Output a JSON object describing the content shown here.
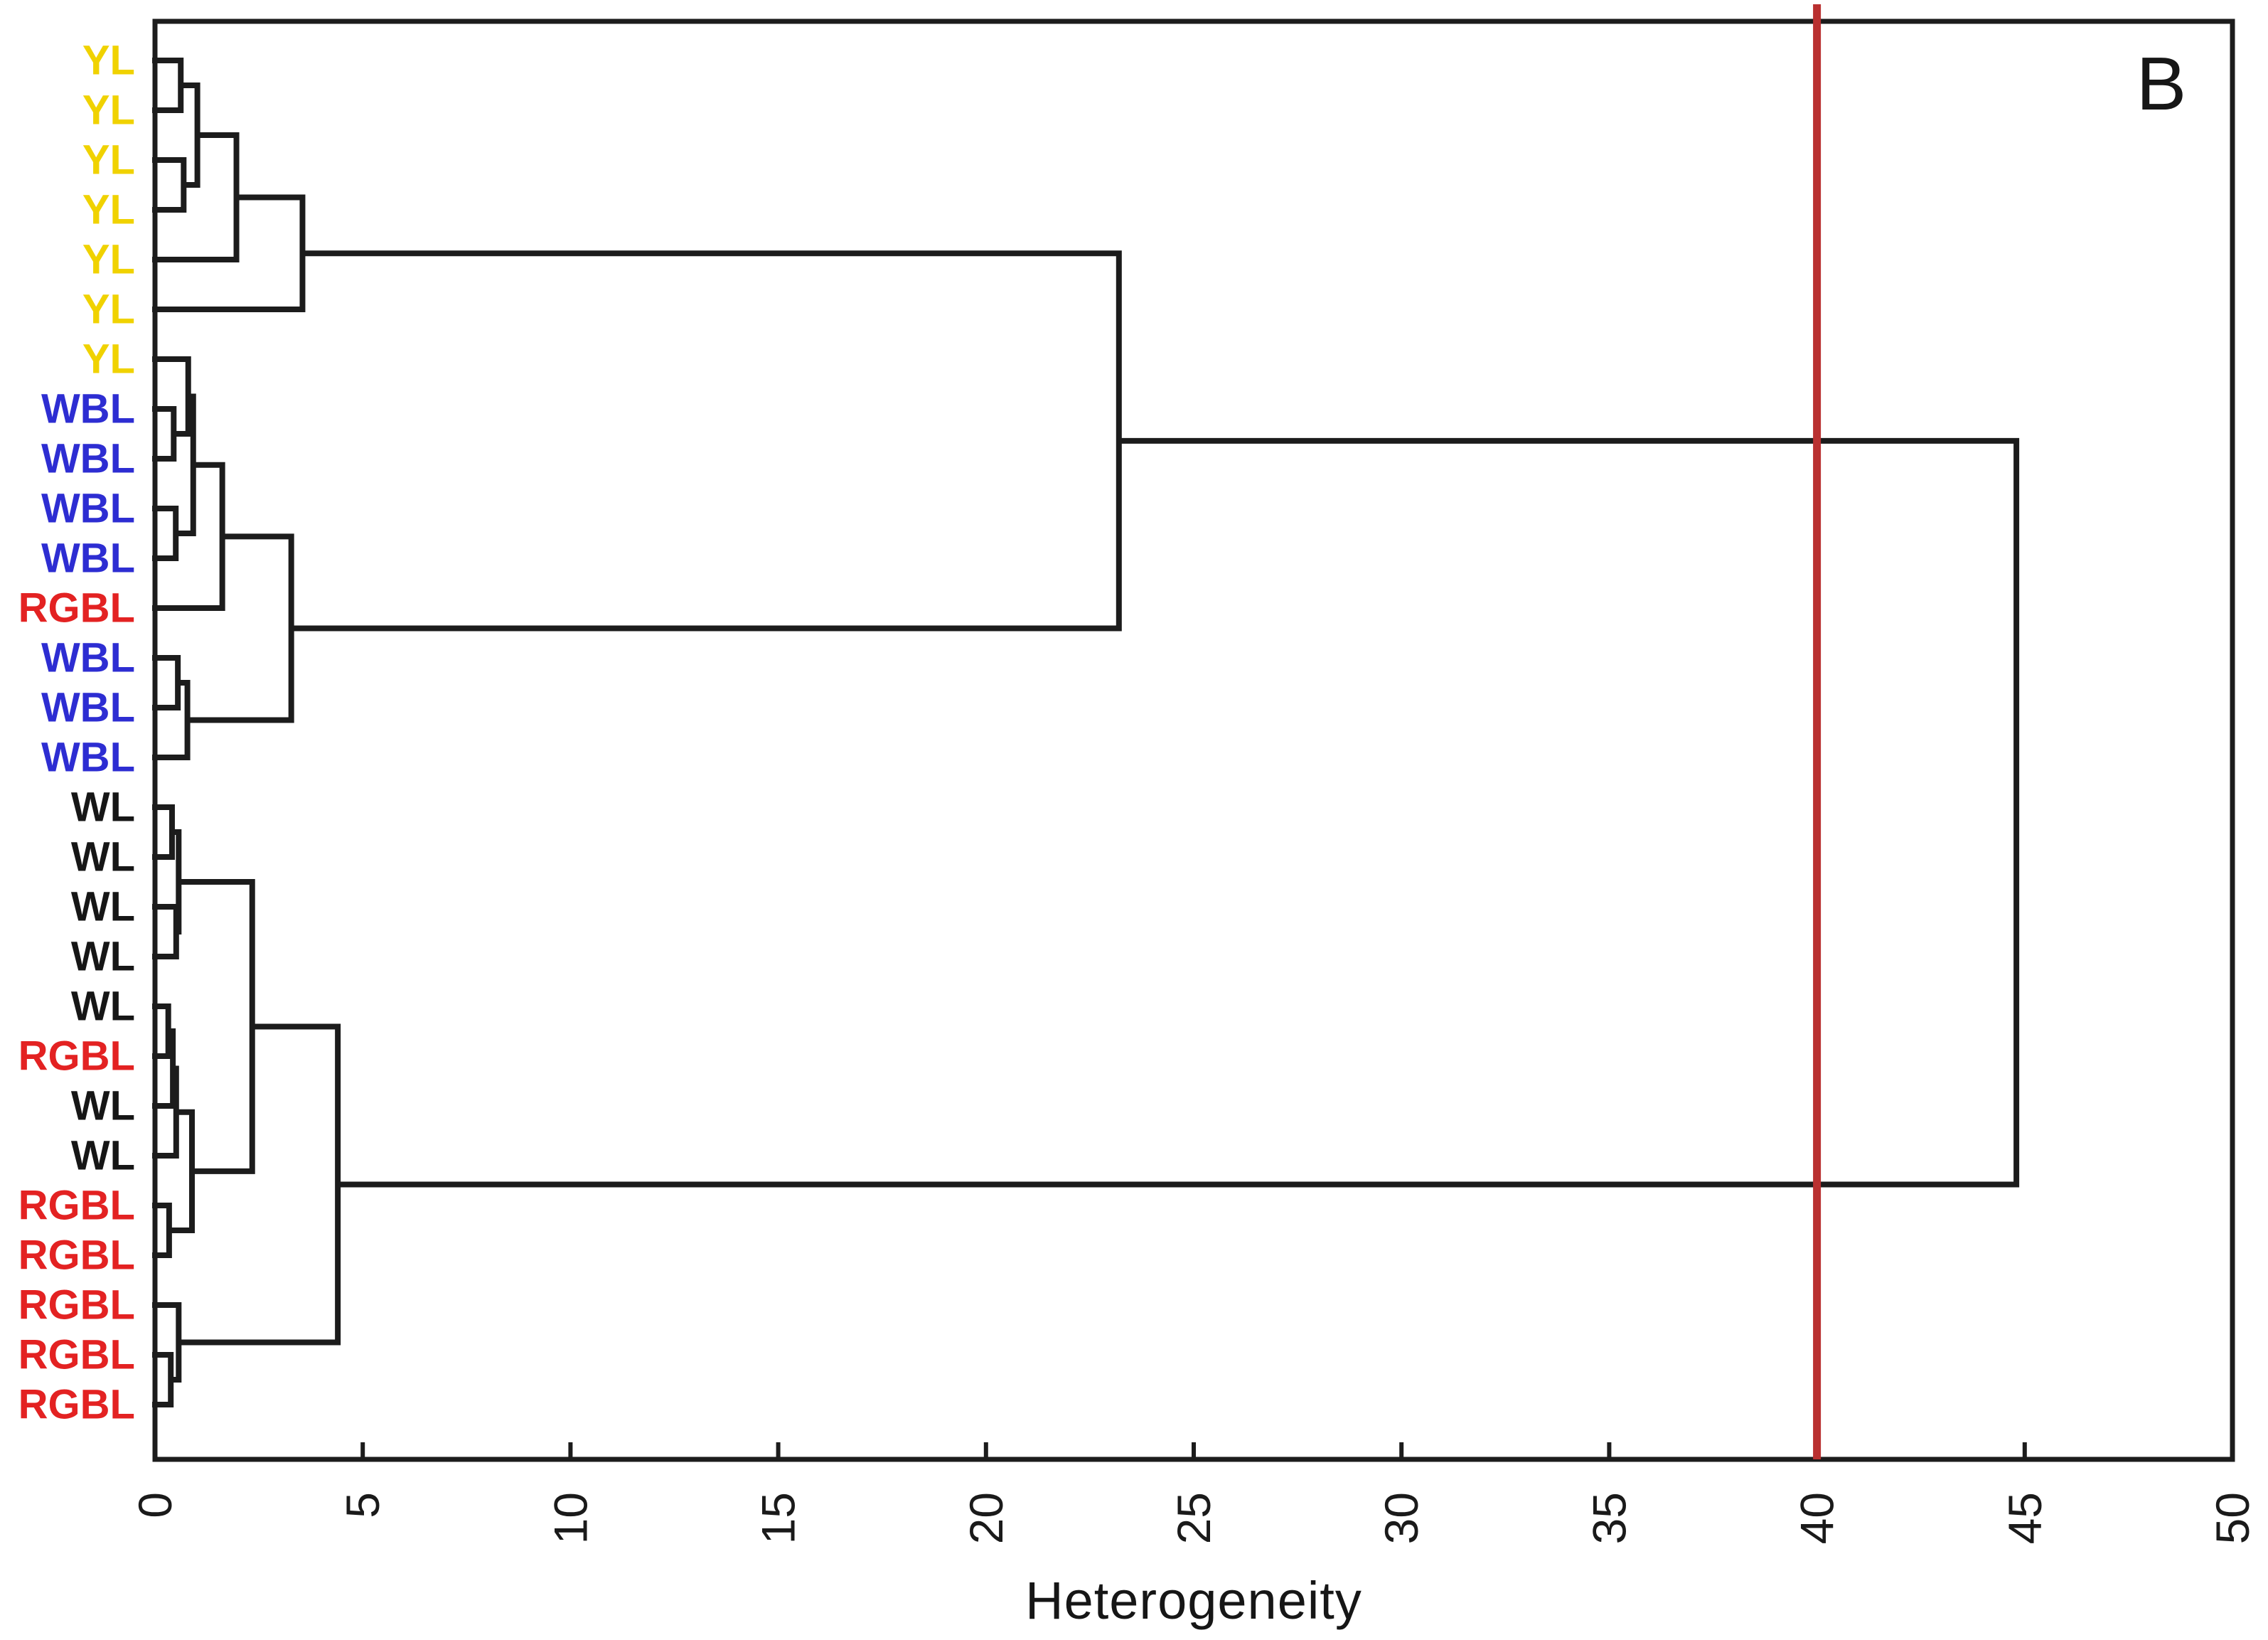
{
  "panel_label": "B",
  "chart_data": {
    "type": "dendrogram",
    "orientation": "horizontal, leaves on left, distance increases to the right",
    "title": "",
    "xlabel": "Heterogeneity",
    "ylabel": "",
    "axis": {
      "min": 0,
      "max": 50,
      "tick_step": 5,
      "ticks": [
        0,
        5,
        10,
        15,
        20,
        25,
        30,
        35,
        40,
        45,
        50
      ],
      "tick_label_rotation_deg": -90,
      "grid": false
    },
    "cutoff_line": {
      "value": 40,
      "color": "#b93030"
    },
    "link_color": "#1c1c1c",
    "frame_color": "#1c1c1c",
    "label_colors": {
      "YL": "#f0d200",
      "WBL": "#2d2dd2",
      "RGBL": "#e32222",
      "WL": "#161616"
    },
    "leaves": [
      "YL",
      "YL",
      "YL",
      "YL",
      "YL",
      "YL",
      "YL",
      "WBL",
      "WBL",
      "WBL",
      "WBL",
      "RGBL",
      "WBL",
      "WBL",
      "WBL",
      "WL",
      "WL",
      "WL",
      "WL",
      "WL",
      "RGBL",
      "WL",
      "WL",
      "RGBL",
      "RGBL",
      "RGBL",
      "RGBL",
      "RGBL"
    ],
    "tree": {
      "d": 44.8,
      "c": [
        {
          "d": 23.2,
          "c": [
            {
              "d": 3.55,
              "c": [
                {
                  "d": 1.96,
                  "c": [
                    {
                      "d": 1.02,
                      "c": [
                        {
                          "d": 0.62,
                          "c": [
                            0,
                            1
                          ]
                        },
                        {
                          "d": 0.69,
                          "c": [
                            2,
                            3
                          ]
                        }
                      ]
                    },
                    4
                  ]
                },
                5
              ]
            },
            {
              "d": 3.28,
              "c": [
                {
                  "d": 1.62,
                  "c": [
                    {
                      "d": 0.92,
                      "c": [
                        {
                          "d": 0.8,
                          "c": [
                            6,
                            {
                              "d": 0.45,
                              "c": [
                                7,
                                8
                              ]
                            }
                          ]
                        },
                        {
                          "d": 0.5,
                          "c": [
                            9,
                            10
                          ]
                        }
                      ]
                    },
                    11
                  ]
                },
                {
                  "d": 0.78,
                  "c": [
                    {
                      "d": 0.55,
                      "c": [
                        12,
                        13
                      ]
                    },
                    14
                  ]
                }
              ]
            }
          ]
        },
        {
          "d": 4.4,
          "c": [
            {
              "d": 2.34,
              "c": [
                {
                  "d": 0.57,
                  "c": [
                    {
                      "d": 0.41,
                      "c": [
                        15,
                        16
                      ]
                    },
                    {
                      "d": 0.51,
                      "c": [
                        17,
                        18
                      ]
                    }
                  ]
                },
                {
                  "d": 0.89,
                  "c": [
                    {
                      "d": 0.51,
                      "c": [
                        {
                          "d": 0.43,
                          "c": [
                            {
                              "d": 0.32,
                              "c": [
                                19,
                                20
                              ]
                            },
                            21
                          ]
                        },
                        22
                      ]
                    },
                    {
                      "d": 0.34,
                      "c": [
                        23,
                        24
                      ]
                    }
                  ]
                }
              ]
            },
            {
              "d": 0.57,
              "c": [
                25,
                {
                  "d": 0.38,
                  "c": [
                    26,
                    27
                  ]
                }
              ]
            }
          ]
        }
      ]
    }
  }
}
